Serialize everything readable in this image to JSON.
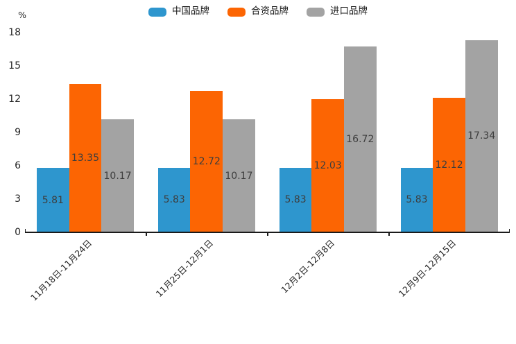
{
  "chart_data": {
    "type": "bar",
    "title": "",
    "unit_label": "%",
    "categories": [
      "11月18日-11月24日",
      "11月25日-12月1日",
      "12月2日-12月8日",
      "12月9日-12月15日"
    ],
    "series": [
      {
        "name": "中国品牌",
        "color": "#2e96ce",
        "values": [
          5.81,
          5.83,
          5.83,
          5.83
        ]
      },
      {
        "name": "合资品牌",
        "color": "#fc6503",
        "values": [
          13.35,
          12.72,
          12.03,
          12.12
        ]
      },
      {
        "name": "进口品牌",
        "color": "#a3a3a3",
        "values": [
          10.17,
          10.17,
          16.72,
          17.34
        ]
      }
    ],
    "ylim": [
      0,
      18
    ],
    "yticks": [
      0,
      3,
      6,
      9,
      12,
      15,
      18
    ],
    "grid": false,
    "legend_position": "top",
    "value_labels": "inside-center",
    "axis_color": "#1a1a1a"
  }
}
